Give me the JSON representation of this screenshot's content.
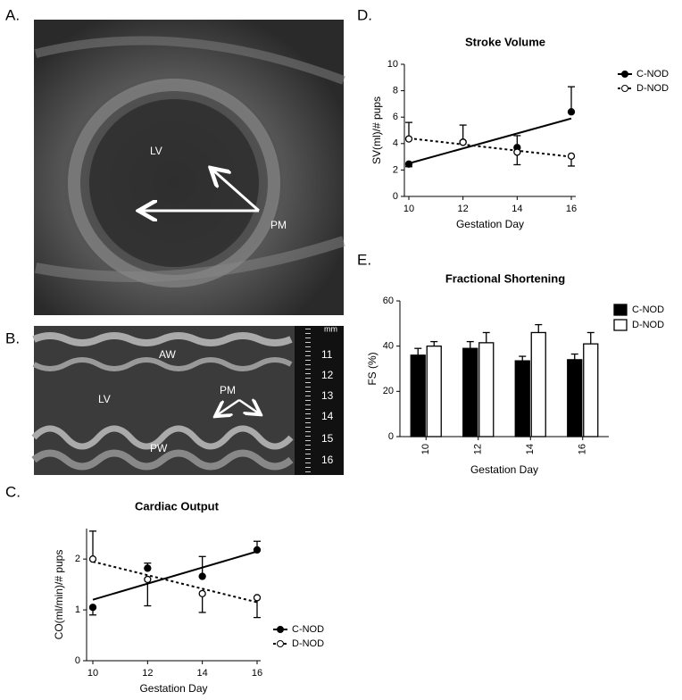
{
  "panel_labels": [
    "A.",
    "B.",
    "C.",
    "D.",
    "E."
  ],
  "image_a": {
    "labels": [
      "LV",
      "PM"
    ]
  },
  "image_b": {
    "labels": [
      "AW",
      "LV",
      "PM",
      "PW"
    ],
    "unit": "mm",
    "scale": [
      "11",
      "12",
      "13",
      "14",
      "15",
      "16"
    ]
  },
  "chart_data": [
    {
      "type": "line",
      "title": "Cardiac Output",
      "x_label": "Gestation Day",
      "y_label": "CO(ml/min)/# pups",
      "x": [
        10,
        12,
        14,
        16
      ],
      "xlim": [
        10,
        16
      ],
      "xticks": [
        10,
        12,
        14,
        16
      ],
      "ylim": [
        0,
        2.6
      ],
      "yticks": [
        0,
        1,
        2
      ],
      "legend": "lower right",
      "series": [
        {
          "name": "C-NOD",
          "color": "#000000",
          "marker_fill": "filled",
          "line_style": "solid",
          "values": [
            1.05,
            1.82,
            1.66,
            2.18
          ],
          "errors": [
            0.15,
            0.1,
            0.39,
            0.17
          ],
          "error_direction": [
            "down",
            "up",
            "up",
            "up"
          ],
          "fit": [
            1.2,
            2.15
          ]
        },
        {
          "name": "D-NOD",
          "color": "#000000",
          "marker_fill": "open",
          "line_style": "dotted",
          "values": [
            2.0,
            1.6,
            1.32,
            1.24
          ],
          "errors": [
            0.55,
            0.52,
            0.37,
            0.39
          ],
          "error_direction": [
            "up",
            "down",
            "down",
            "down"
          ],
          "fit": [
            1.95,
            1.15
          ]
        }
      ]
    },
    {
      "type": "line",
      "title": "Stroke Volume",
      "x_label": "Gestation Day",
      "y_label": "SV(ml)/# pups",
      "x": [
        10,
        12,
        14,
        16
      ],
      "xlim": [
        10,
        16
      ],
      "xticks": [
        10,
        12,
        14,
        16
      ],
      "ylim": [
        0,
        10
      ],
      "yticks": [
        0,
        2,
        4,
        6,
        8,
        10
      ],
      "legend": "upper right",
      "series": [
        {
          "name": "C-NOD",
          "color": "#000000",
          "marker_fill": "filled",
          "line_style": "solid",
          "values": [
            2.45,
            4.1,
            3.7,
            6.4
          ],
          "errors": [
            0.2,
            0.1,
            0.9,
            1.9
          ],
          "error_direction": [
            "down",
            "up",
            "up",
            "up"
          ],
          "fit": [
            2.5,
            5.9
          ]
        },
        {
          "name": "D-NOD",
          "color": "#000000",
          "marker_fill": "open",
          "line_style": "dotted",
          "values": [
            4.35,
            4.1,
            3.35,
            3.05
          ],
          "errors": [
            1.25,
            1.3,
            0.95,
            0.75
          ],
          "error_direction": [
            "up",
            "up",
            "down",
            "down"
          ],
          "fit": [
            4.4,
            3.0
          ]
        }
      ]
    },
    {
      "type": "bar",
      "title": "Fractional Shortening",
      "x_label": "Gestation Day",
      "y_label": "FS (%)",
      "categories": [
        "10",
        "12",
        "14",
        "16"
      ],
      "ylim": [
        0,
        60
      ],
      "yticks": [
        0,
        20,
        40,
        60
      ],
      "legend": "upper right",
      "series": [
        {
          "name": "C-NOD",
          "color": "#000000",
          "values": [
            36,
            39,
            33.5,
            34
          ],
          "errors": [
            3,
            3,
            2,
            2.5
          ]
        },
        {
          "name": "D-NOD",
          "color": "#ffffff",
          "values": [
            40,
            41.5,
            46,
            41
          ],
          "errors": [
            2,
            4.5,
            3.5,
            5
          ]
        }
      ]
    }
  ]
}
